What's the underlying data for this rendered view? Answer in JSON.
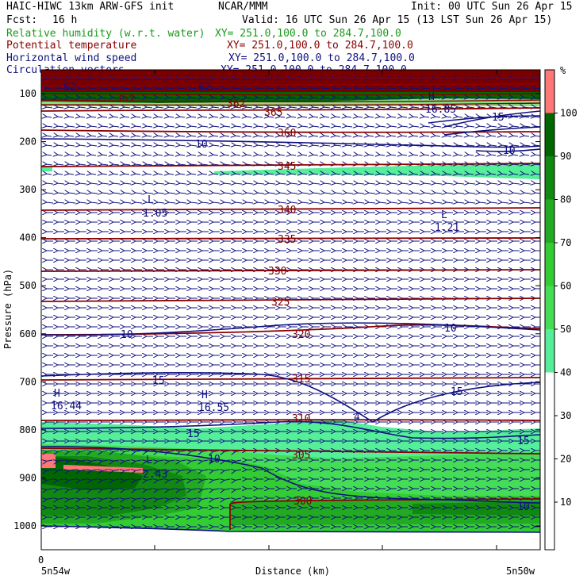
{
  "header": {
    "title_left": "HAIC-HIWC 13km ARW-GFS init",
    "title_mid": "NCAR/MMM",
    "init": "Init: 00 UTC Sun 26 Apr 15",
    "fcst_label": "Fcst:",
    "fcst_value": "16 h",
    "valid": "Valid: 16 UTC Sun 26 Apr 15 (13 LST Sun 26 Apr 15)",
    "fields": [
      {
        "name": "Relative humidity (w.r.t. water)",
        "xy": "XY= 251.0,100.0 to 284.7,100.0",
        "color": "#1a9a1a"
      },
      {
        "name": "Potential temperature",
        "xy": "XY= 251.0,100.0 to 284.7,100.0",
        "color": "#8b0000"
      },
      {
        "name": "Horizontal wind speed",
        "xy": "XY= 251.0,100.0 to 284.7,100.0",
        "color": "#101080"
      },
      {
        "name": "Circulation vectors",
        "xy": "XY= 251.0,100.0 to 284.7,100.0",
        "color": "#101080"
      }
    ]
  },
  "chart_data": {
    "type": "cross-section",
    "ylabel": "Pressure (hPa)",
    "xlabel": "Distance (km)",
    "x_start_label": "5n54w",
    "x_end_label": "5n50w",
    "x_origin_label": "0",
    "y_ticks": [
      100,
      200,
      300,
      400,
      500,
      600,
      700,
      800,
      900,
      1000
    ],
    "ylim": [
      1050,
      60
    ],
    "colorbar": {
      "unit": "%",
      "levels": [
        10,
        20,
        30,
        40,
        50,
        60,
        70,
        80,
        90,
        100
      ],
      "colors": {
        "50": "#55ee99",
        "60": "#44dd55",
        "70": "#33cc33",
        "80": "#22aa22",
        "90": "#118811",
        "100": "#006600",
        "above": "#ff7777"
      }
    },
    "theta_labels": [
      {
        "text": "365",
        "p": 140
      },
      {
        "text": "360",
        "p": 168
      },
      {
        "text": "345",
        "p": 212
      },
      {
        "text": "340",
        "p": 343
      },
      {
        "text": "335",
        "p": 400
      },
      {
        "text": "330",
        "p": 465
      },
      {
        "text": "325",
        "p": 530
      },
      {
        "text": "320",
        "p": 598
      },
      {
        "text": "315",
        "p": 693
      },
      {
        "text": "310",
        "p": 780
      },
      {
        "text": "305",
        "p": 848
      },
      {
        "text": "300",
        "p": 940
      },
      {
        "text": "365",
        "p": 105
      },
      {
        "text": "362",
        "p": 120
      }
    ],
    "windspeed_labels": [
      {
        "text": "10",
        "p": 183
      },
      {
        "text": "10",
        "p": 198
      },
      {
        "text": "15",
        "p": 145
      },
      {
        "text": "10",
        "p": 603
      },
      {
        "text": "10",
        "p": 592
      },
      {
        "text": "15",
        "p": 697
      },
      {
        "text": "15",
        "p": 720
      },
      {
        "text": "4",
        "p": 777
      },
      {
        "text": "15",
        "p": 805
      },
      {
        "text": "15",
        "p": 820
      },
      {
        "text": "10",
        "p": 863
      },
      {
        "text": "10",
        "p": 958
      },
      {
        "text": "62",
        "p": 95
      },
      {
        "text": "62",
        "p": 95
      }
    ],
    "extrema": [
      {
        "type": "L",
        "value": "1.05",
        "p": 335
      },
      {
        "type": "L",
        "value": "1.21",
        "p": 345
      },
      {
        "type": "H",
        "value": "16.44",
        "p": 738
      },
      {
        "type": "H",
        "value": "16.55",
        "p": 738
      },
      {
        "type": "L",
        "value": "2.43",
        "p": 882
      },
      {
        "type": "H",
        "value": "16.85",
        "p": 130
      }
    ]
  }
}
